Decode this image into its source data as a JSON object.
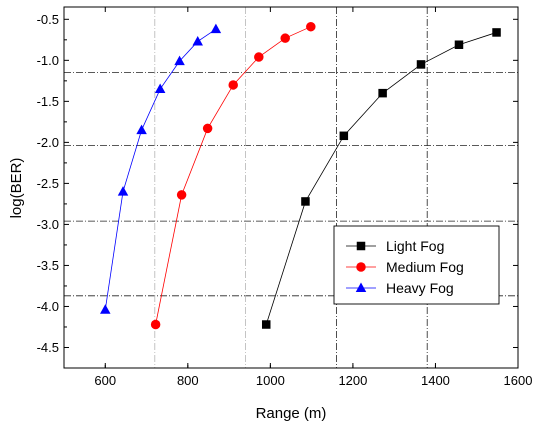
{
  "chart_data": {
    "type": "line",
    "xlabel": "Range (m)",
    "ylabel": "log(BER)",
    "xlim": [
      500,
      1600
    ],
    "ylim": [
      -4.75,
      -0.35
    ],
    "x_ticks": [
      "600",
      "800",
      "1000",
      "1200",
      "1400",
      "1600"
    ],
    "y_ticks": [
      "-4.5",
      "-4.0",
      "-3.5",
      "-3.0",
      "-2.5",
      "-2.0",
      "-1.5",
      "-1.0",
      "-0.5"
    ],
    "legend_position": "lower-right",
    "reference_lines": {
      "horizontal": [
        -1.15,
        -2.04,
        -2.96,
        -3.87
      ],
      "vertical": [
        720,
        940,
        1160,
        1380
      ]
    },
    "series": [
      {
        "name": "Light Fog",
        "marker": "square",
        "color": "#000000",
        "x": [
          990,
          1085,
          1178,
          1272,
          1365,
          1457,
          1548
        ],
        "y": [
          -4.22,
          -2.72,
          -1.92,
          -1.4,
          -1.05,
          -0.81,
          -0.66
        ]
      },
      {
        "name": "Medium Fog",
        "marker": "circle",
        "color": "#ff0000",
        "x": [
          722,
          785,
          848,
          910,
          972,
          1036,
          1098
        ],
        "y": [
          -4.22,
          -2.64,
          -1.83,
          -1.3,
          -0.96,
          -0.73,
          -0.59
        ]
      },
      {
        "name": "Heavy Fog",
        "marker": "triangle",
        "color": "#0000ff",
        "x": [
          600,
          643,
          688,
          733,
          780,
          824,
          868
        ],
        "y": [
          -4.04,
          -2.6,
          -1.85,
          -1.35,
          -1.01,
          -0.77,
          -0.62
        ]
      }
    ]
  }
}
